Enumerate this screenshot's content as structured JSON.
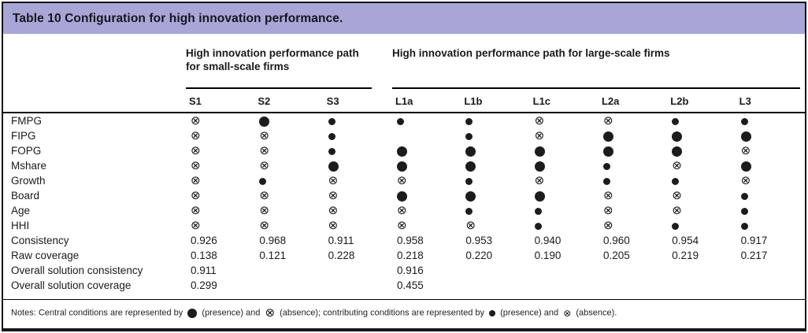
{
  "table": {
    "title": "Table 10 Configuration for high innovation performance.",
    "groups": [
      {
        "label": "High innovation performance path for small-scale firms",
        "span": 3
      },
      {
        "label": "High innovation performance path for large-scale firms",
        "span": 6
      }
    ],
    "columns": [
      "S1",
      "S2",
      "S3",
      "L1a",
      "L1b",
      "L1c",
      "L2a",
      "L2b",
      "L3"
    ],
    "symbol_codes": {
      "CP": "central-presence-large-filled-circle",
      "cp": "contributing-presence-small-filled-circle",
      "a": "absence-circled-times",
      "": "empty"
    },
    "rows": [
      {
        "label": "FMPG",
        "cells": [
          "a",
          "CP",
          "cp",
          "cp",
          "cp",
          "a",
          "a",
          "cp",
          "cp"
        ]
      },
      {
        "label": "FIPG",
        "cells": [
          "a",
          "a",
          "cp",
          "",
          "cp",
          "a",
          "CP",
          "CP",
          "CP"
        ]
      },
      {
        "label": "FOPG",
        "cells": [
          "a",
          "a",
          "cp",
          "CP",
          "CP",
          "CP",
          "CP",
          "CP",
          "a"
        ]
      },
      {
        "label": "Mshare",
        "cells": [
          "a",
          "a",
          "CP",
          "CP",
          "CP",
          "CP",
          "cp",
          "a",
          "CP"
        ]
      },
      {
        "label": "Growth",
        "cells": [
          "a",
          "cp",
          "a",
          "a",
          "cp",
          "a",
          "cp",
          "cp",
          "a"
        ]
      },
      {
        "label": "Board",
        "cells": [
          "a",
          "a",
          "a",
          "CP",
          "CP",
          "CP",
          "a",
          "a",
          "cp"
        ]
      },
      {
        "label": "Age",
        "cells": [
          "a",
          "a",
          "a",
          "a",
          "cp",
          "cp",
          "a",
          "a",
          "cp"
        ]
      },
      {
        "label": "HHI",
        "cells": [
          "a",
          "a",
          "a",
          "a",
          "a",
          "cp",
          "a",
          "cp",
          "cp"
        ]
      },
      {
        "label": "Consistency",
        "cells": [
          "0.926",
          "0.968",
          "0.911",
          "0.958",
          "0.953",
          "0.940",
          "0.960",
          "0.954",
          "0.917"
        ]
      },
      {
        "label": "Raw coverage",
        "cells": [
          "0.138",
          "0.121",
          "0.228",
          "0.218",
          "0.220",
          "0.190",
          "0.205",
          "0.219",
          "0.217"
        ]
      },
      {
        "label": "Overall solution consistency",
        "cells": [
          "0.911",
          "",
          "",
          "0.916",
          "",
          "",
          "",
          "",
          ""
        ]
      },
      {
        "label": "Overall solution coverage",
        "cells": [
          "0.299",
          "",
          "",
          "0.455",
          "",
          "",
          "",
          "",
          ""
        ]
      }
    ],
    "notes": {
      "prefix": "Notes: Central conditions are represented by",
      "seg_central_presence": "(presence) and",
      "seg_central_absence": "(absence); contributing conditions are represented by",
      "seg_contrib_presence": "(presence) and",
      "suffix": "(absence)."
    }
  },
  "colors": {
    "title_bar_bg": "#a7a6d6",
    "border": "#15151b",
    "symbol": "#1c1c1f"
  }
}
